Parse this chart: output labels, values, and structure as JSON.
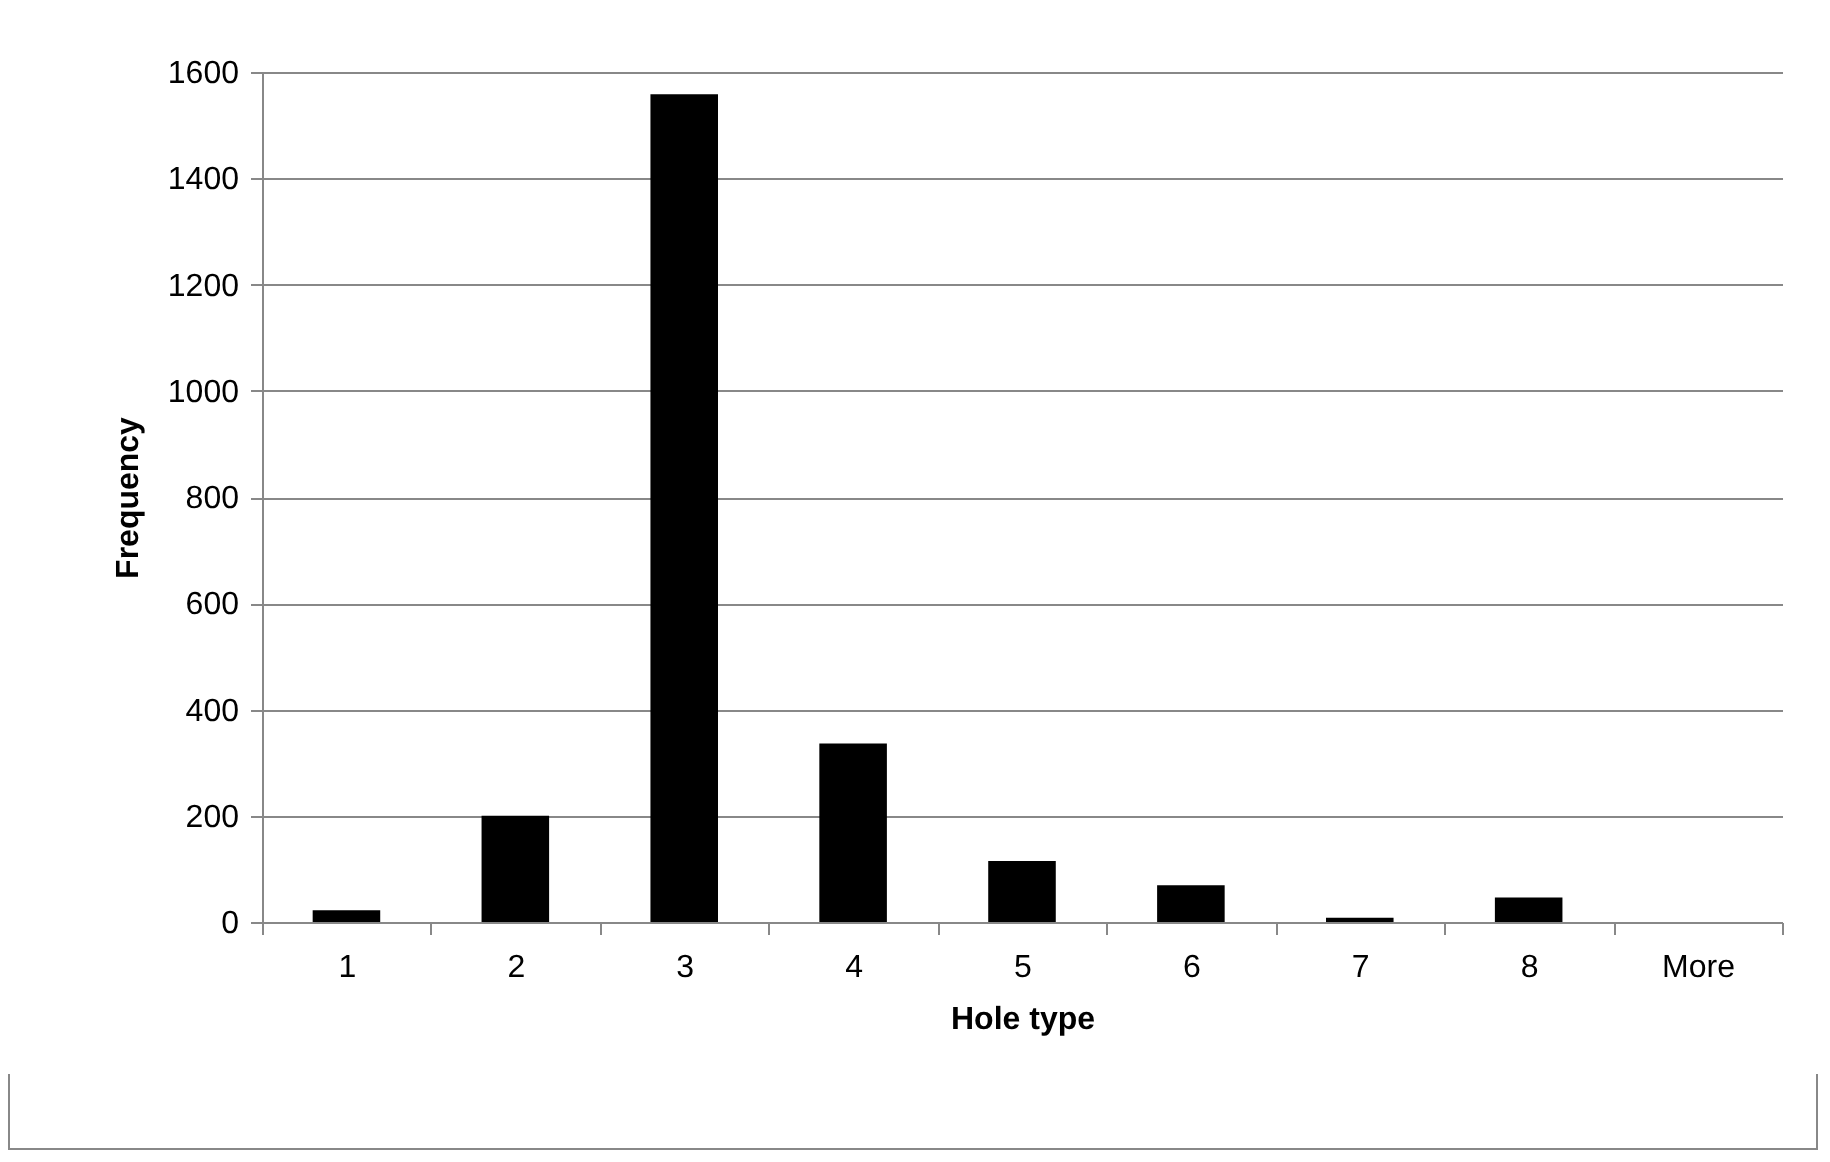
{
  "chart_data": {
    "type": "bar",
    "xlabel": "Hole type",
    "ylabel": "Frequency",
    "categories": [
      "1",
      "2",
      "3",
      "4",
      "5",
      "6",
      "7",
      "8",
      "More"
    ],
    "values": [
      22,
      200,
      1558,
      336,
      115,
      69,
      8,
      46,
      0
    ],
    "color": "#000000",
    "ylim": [
      0,
      1600
    ],
    "yticks": [
      0,
      200,
      400,
      600,
      800,
      1000,
      1200,
      1400,
      1600
    ],
    "grid": "y"
  }
}
